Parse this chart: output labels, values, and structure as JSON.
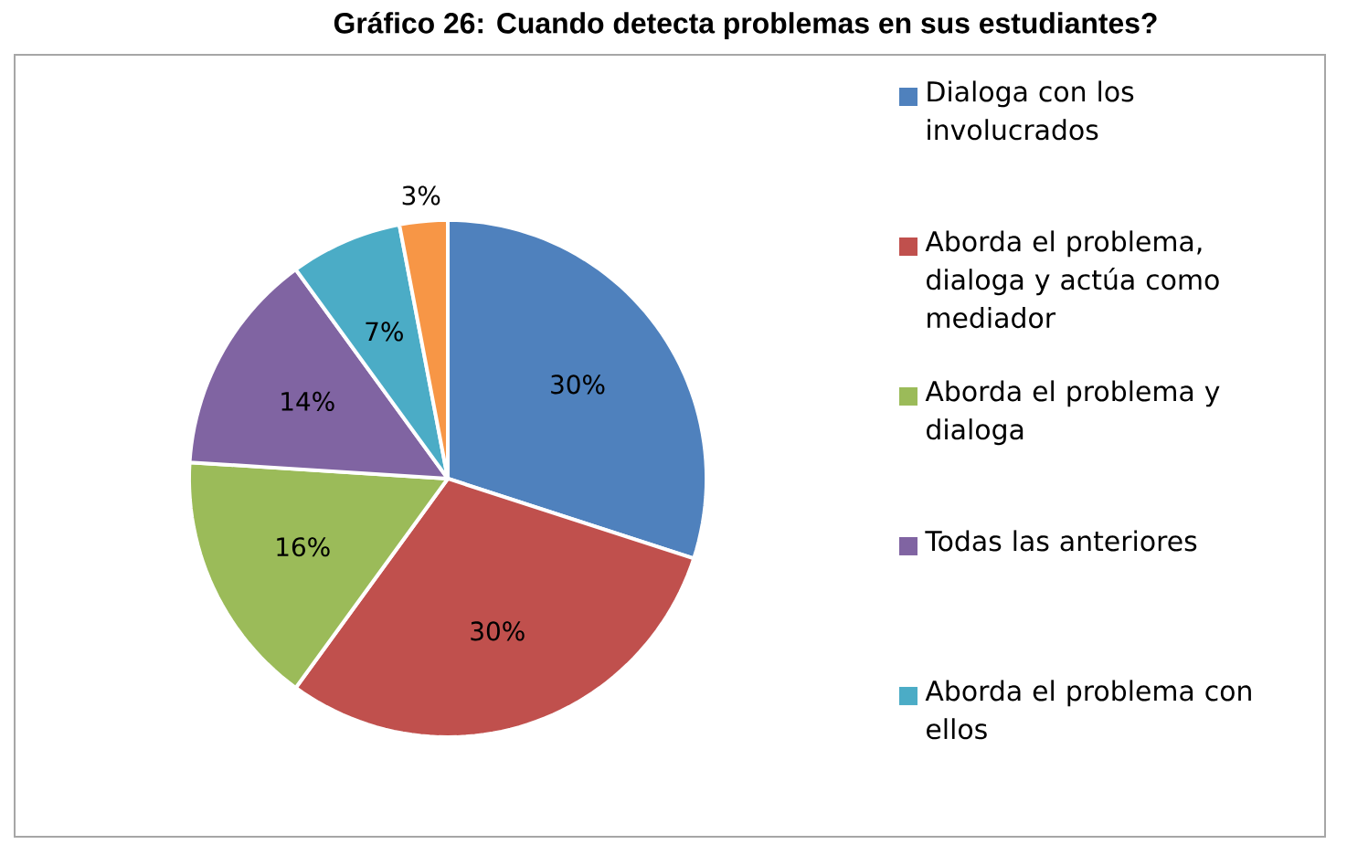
{
  "chart_data": {
    "type": "pie",
    "title": "Gráfico 26: Cuando detecta problemas en sus estudiantes?",
    "categories": [
      "Dialoga con los involucrados",
      "Aborda el problema, dialoga y actúa como mediador",
      "Aborda el problema y dialoga",
      "Todas las anteriores",
      "Aborda el problema con ellos",
      null
    ],
    "values": [
      30,
      30,
      16,
      14,
      7,
      3
    ],
    "value_labels": [
      "30%",
      "30%",
      "16%",
      "14%",
      "7%",
      "3%"
    ],
    "colors": [
      "#4f81bd",
      "#c0504d",
      "#9bbb59",
      "#8064a2",
      "#4bacc6",
      "#f79646"
    ],
    "legend": "right"
  }
}
